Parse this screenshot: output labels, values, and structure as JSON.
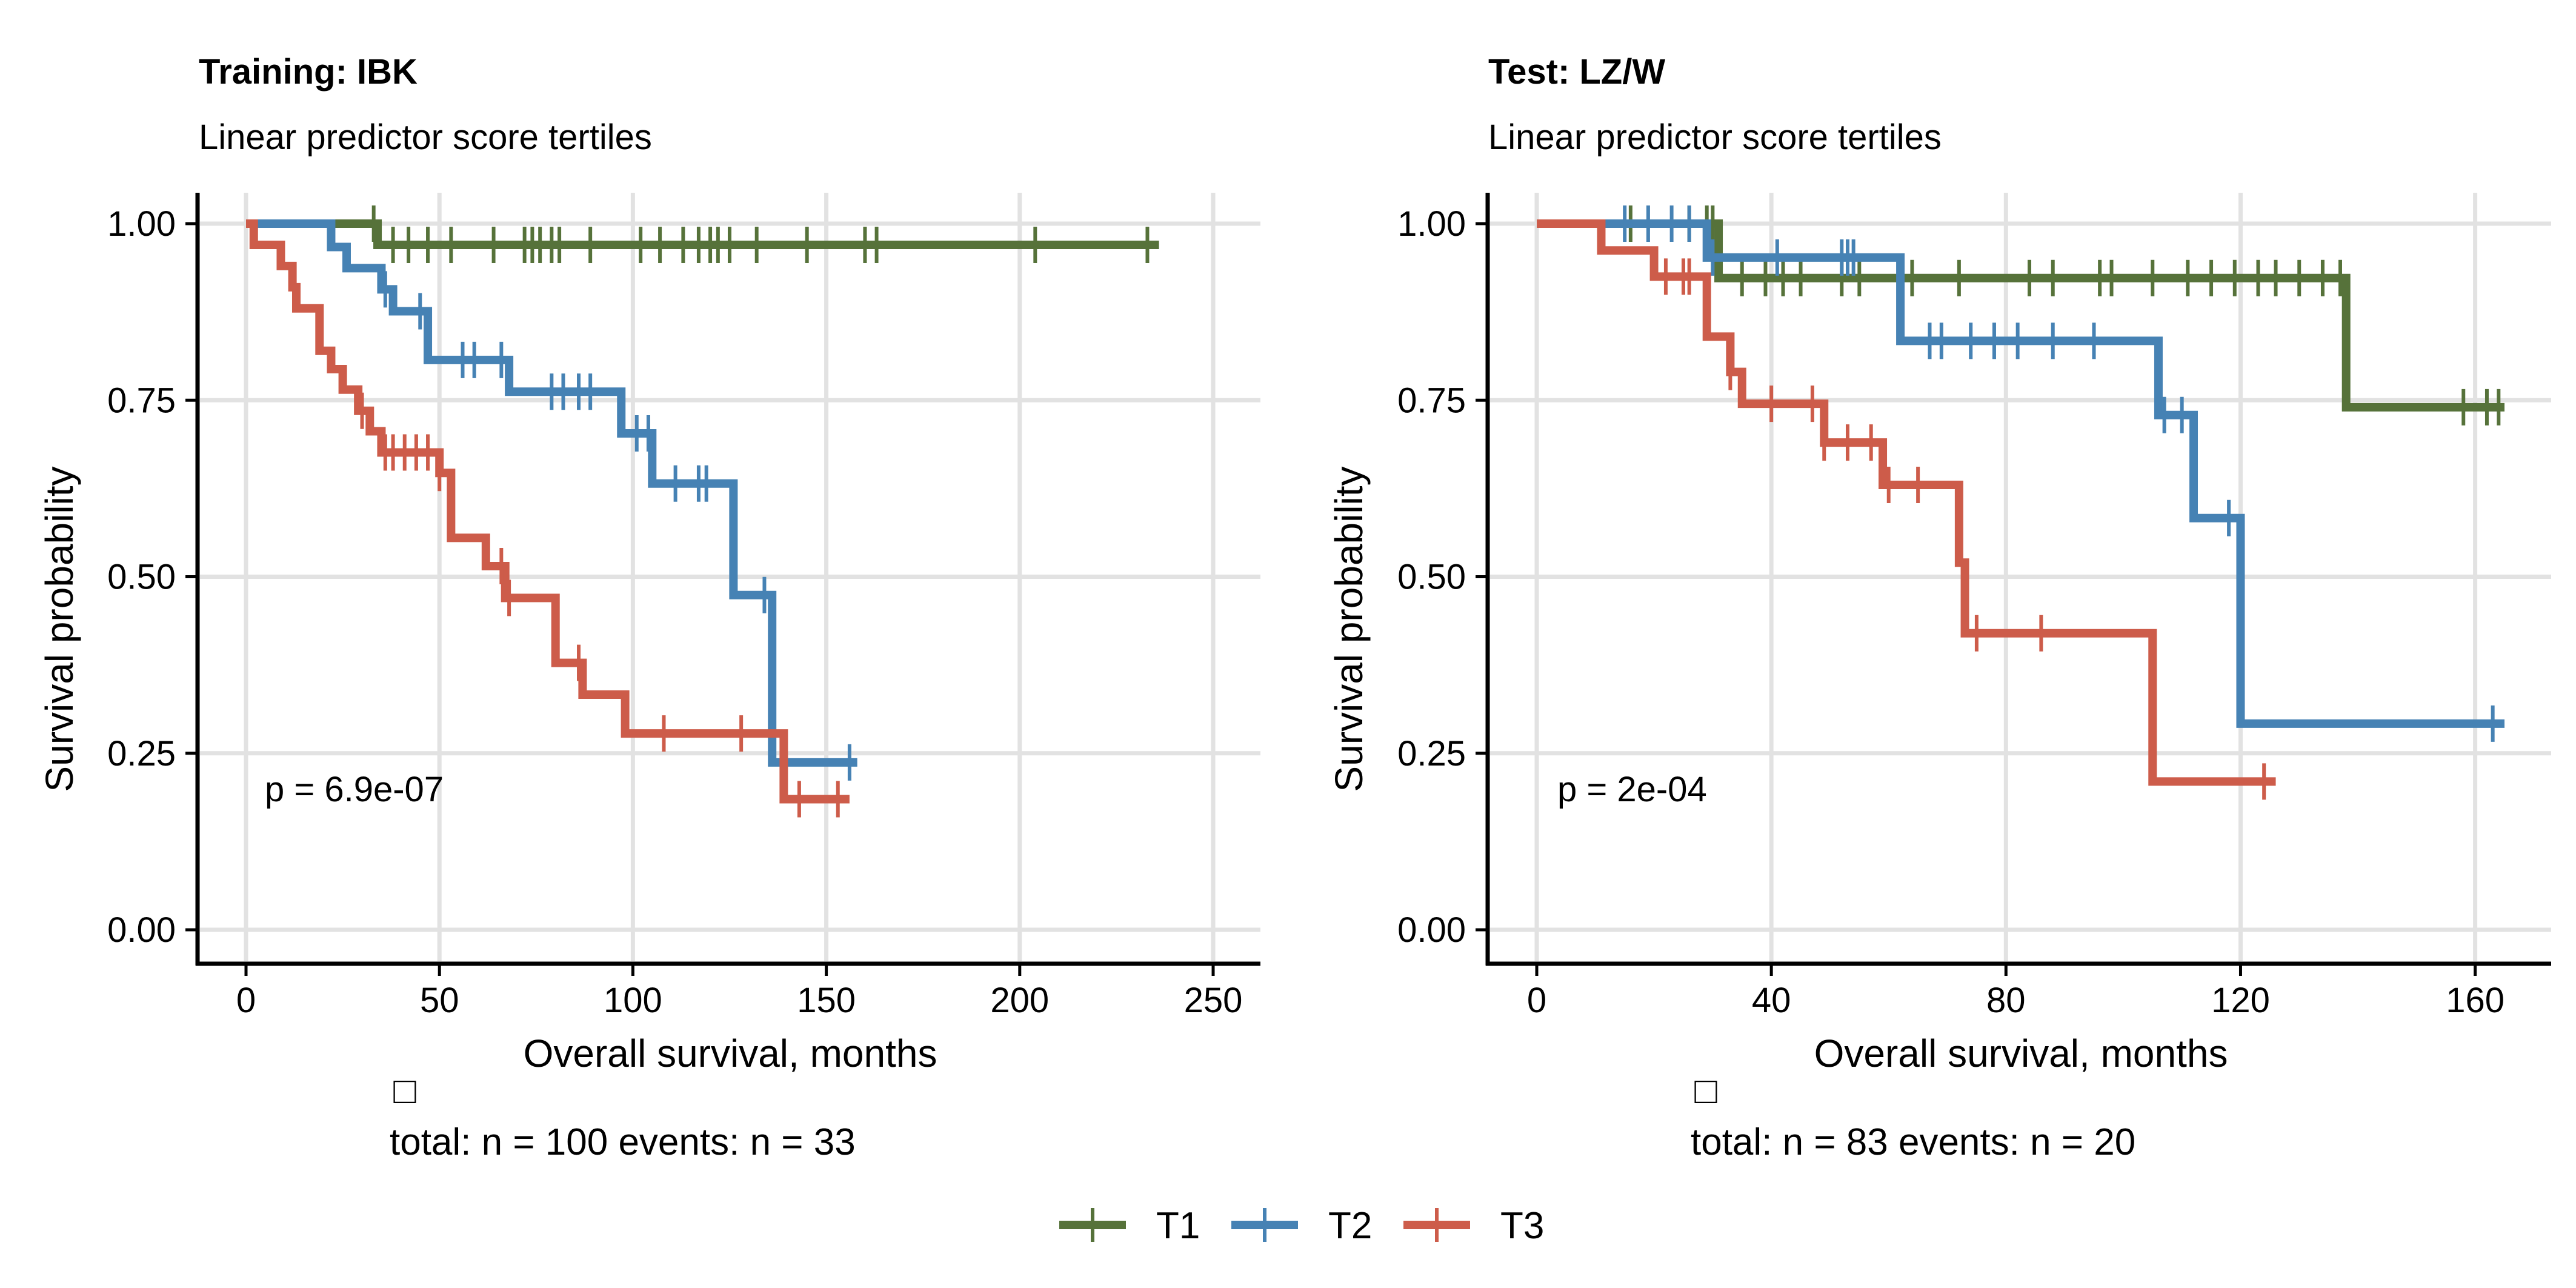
{
  "legend": {
    "items": [
      {
        "label": "T1",
        "color": "#56723a"
      },
      {
        "label": "T2",
        "color": "#4682b4"
      },
      {
        "label": "T3",
        "color": "#cd5c4a"
      }
    ]
  },
  "chart_data": [
    {
      "type": "line",
      "subtype": "kaplan-meier",
      "title": "Training: IBK",
      "subtitle": "Linear predictor score tertiles",
      "xlabel": "Overall survival, months",
      "ylabel": "Survival probability",
      "xlim": [
        0,
        250
      ],
      "ylim": [
        0,
        1
      ],
      "xticks": [
        0,
        50,
        100,
        150,
        200,
        250
      ],
      "yticks": [
        0,
        0.25,
        0.5,
        0.75,
        1
      ],
      "ytick_labels": [
        "0.00",
        "0.25",
        "0.50",
        "0.75",
        "1.00"
      ],
      "grid": true,
      "annotation": "p = 6.9e-07",
      "footer_glyph": "□",
      "footer": "total: n =  100 events: n =  33",
      "series": [
        {
          "name": "T1",
          "color": "#56723a",
          "steps": [
            [
              0,
              1.0
            ],
            [
              34,
              0.97
            ],
            [
              236,
              0.97
            ]
          ],
          "censor": [
            33,
            38,
            42,
            47,
            53,
            64,
            72,
            74,
            76,
            79,
            81,
            89,
            102,
            107,
            113,
            117,
            120,
            122,
            125,
            132,
            145,
            160,
            163,
            204,
            233
          ]
        },
        {
          "name": "T2",
          "color": "#4682b4",
          "steps": [
            [
              0,
              1.0
            ],
            [
              22,
              0.967
            ],
            [
              26,
              0.937
            ],
            [
              35,
              0.907
            ],
            [
              38,
              0.876
            ],
            [
              47,
              0.807
            ],
            [
              68,
              0.762
            ],
            [
              97,
              0.703
            ],
            [
              105,
              0.632
            ],
            [
              126,
              0.474
            ],
            [
              136,
              0.237
            ],
            [
              158,
              0.237
            ]
          ],
          "censor": [
            36,
            45,
            56,
            59,
            66,
            79,
            82,
            86,
            89,
            101,
            104,
            111,
            117,
            119,
            134,
            156
          ]
        },
        {
          "name": "T3",
          "color": "#cd5c4a",
          "steps": [
            [
              0,
              1.0
            ],
            [
              2,
              0.97
            ],
            [
              9,
              0.94
            ],
            [
              12,
              0.91
            ],
            [
              13,
              0.88
            ],
            [
              19,
              0.82
            ],
            [
              22,
              0.794
            ],
            [
              25,
              0.765
            ],
            [
              29,
              0.735
            ],
            [
              32,
              0.706
            ],
            [
              35,
              0.676
            ],
            [
              50,
              0.647
            ],
            [
              53,
              0.555
            ],
            [
              62,
              0.515
            ],
            [
              67,
              0.47
            ],
            [
              80,
              0.378
            ],
            [
              87,
              0.333
            ],
            [
              98,
              0.278
            ],
            [
              139,
              0.185
            ],
            [
              156,
              0.185
            ]
          ],
          "censor": [
            30,
            36,
            38,
            41,
            44,
            47,
            50,
            66,
            68,
            86,
            108,
            128,
            143,
            153
          ]
        }
      ]
    },
    {
      "type": "line",
      "subtype": "kaplan-meier",
      "title": "Test: LZ/W",
      "subtitle": "Linear predictor score tertiles",
      "xlabel": "Overall survival, months",
      "ylabel": "Survival probability",
      "xlim": [
        0,
        165
      ],
      "ylim": [
        0,
        1
      ],
      "xticks": [
        0,
        40,
        80,
        120,
        160
      ],
      "yticks": [
        0,
        0.25,
        0.5,
        0.75,
        1
      ],
      "ytick_labels": [
        "0.00",
        "0.25",
        "0.50",
        "0.75",
        "1.00"
      ],
      "grid": true,
      "annotation": "p = 2e-04",
      "footer_glyph": "□",
      "footer": "total: n =  83 events: n =  20",
      "series": [
        {
          "name": "T1",
          "color": "#56723a",
          "steps": [
            [
              0,
              1.0
            ],
            [
              31,
              0.923
            ],
            [
              138,
              0.74
            ],
            [
              165,
              0.74
            ]
          ],
          "censor": [
            16,
            26,
            29,
            30,
            35,
            39,
            42,
            45,
            52,
            55,
            62,
            64,
            72,
            84,
            88,
            96,
            98,
            105,
            111,
            115,
            119,
            123,
            126,
            130,
            134,
            137,
            158,
            162,
            164
          ]
        },
        {
          "name": "T2",
          "color": "#4682b4",
          "steps": [
            [
              0,
              1.0
            ],
            [
              29,
              0.952
            ],
            [
              62,
              0.834
            ],
            [
              106,
              0.729
            ],
            [
              112,
              0.583
            ],
            [
              120,
              0.292
            ],
            [
              165,
              0.292
            ]
          ],
          "censor": [
            15,
            19,
            23,
            26,
            30,
            41,
            52,
            53,
            54,
            67,
            69,
            74,
            78,
            82,
            88,
            95,
            107,
            110,
            118,
            163
          ]
        },
        {
          "name": "T3",
          "color": "#cd5c4a",
          "steps": [
            [
              0,
              1.0
            ],
            [
              11,
              0.962
            ],
            [
              20,
              0.925
            ],
            [
              29,
              0.84
            ],
            [
              33,
              0.79
            ],
            [
              35,
              0.745
            ],
            [
              49,
              0.69
            ],
            [
              59,
              0.63
            ],
            [
              72,
              0.52
            ],
            [
              73,
              0.42
            ],
            [
              105,
              0.21
            ],
            [
              126,
              0.21
            ]
          ],
          "censor": [
            22,
            25,
            26,
            33,
            40,
            47,
            49,
            53,
            57,
            60,
            65,
            75,
            86,
            124
          ]
        }
      ]
    }
  ]
}
